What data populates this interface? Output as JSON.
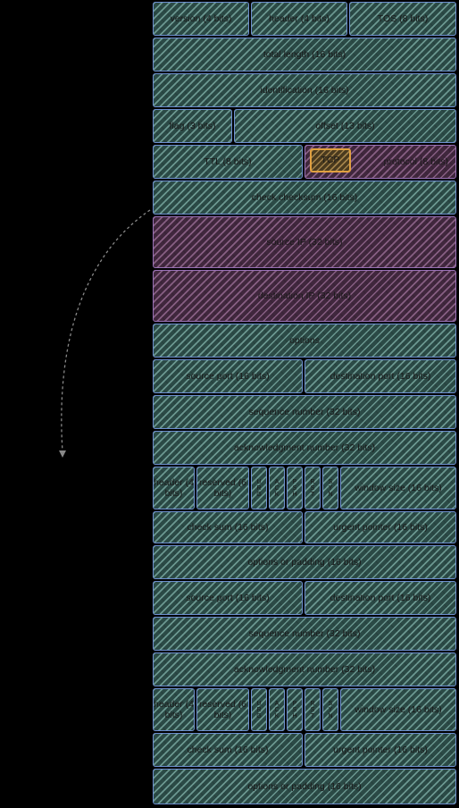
{
  "ip_header": {
    "version": "version (4 bits)",
    "header": "header (4 bits)",
    "tos": "TOS (8 bits)",
    "total_length": "total length (16 bits)",
    "identification": "identification (16 bits)",
    "flag": "flag (3 bits)",
    "offset": "offset (13 bits)",
    "ttl": "TTL (8 bits)",
    "tcp_tag": "TCP",
    "protocol": "protocol (8 bits)",
    "checksum": "check checksum (16 bits)",
    "source_ip": "source IP (32 bits)",
    "destination_ip": "destination IP (32 bits)",
    "options": "options"
  },
  "tcp_header_1": {
    "source_port": "source port (16 bits)",
    "destination_port": "destination port (16 bits)",
    "sequence_number": "sequence number (32 bits)",
    "ack_number": "acknowledgment number (32 bits)",
    "header_length": "header (4 bits)",
    "reserved": "reserved (6 bits)",
    "flags": [
      "URG",
      "ACK",
      "PSH",
      "RST",
      "SYN"
    ],
    "window_size": "window size (16 bits)",
    "checksum": "check sum (16 bits)",
    "urgent_pointer": "urgent pointer (16 bits)",
    "options": "options or padding (16 bits)"
  },
  "tcp_header_2": {
    "source_port": "source port (16 bits)",
    "destination_port": "destination port (16 bits)",
    "sequence_number": "sequence number (32 bits)",
    "ack_number": "acknowledgment number (32 bits)",
    "header_length": "header (4 bits)",
    "reserved": "reserved (6 bits)",
    "flags": [
      "URG",
      "ACK",
      "PSH",
      "RST",
      "SYN"
    ],
    "window_size": "window size (16 bits)",
    "checksum": "check sum (16 bits)",
    "urgent_pointer": "urgent pointer (16 bits)",
    "options": "options or padding (16 bits)"
  },
  "colors": {
    "field": "#2b4a46",
    "address": "#40273d",
    "highlight": "#e0a040",
    "border": "#6d8fd0"
  }
}
